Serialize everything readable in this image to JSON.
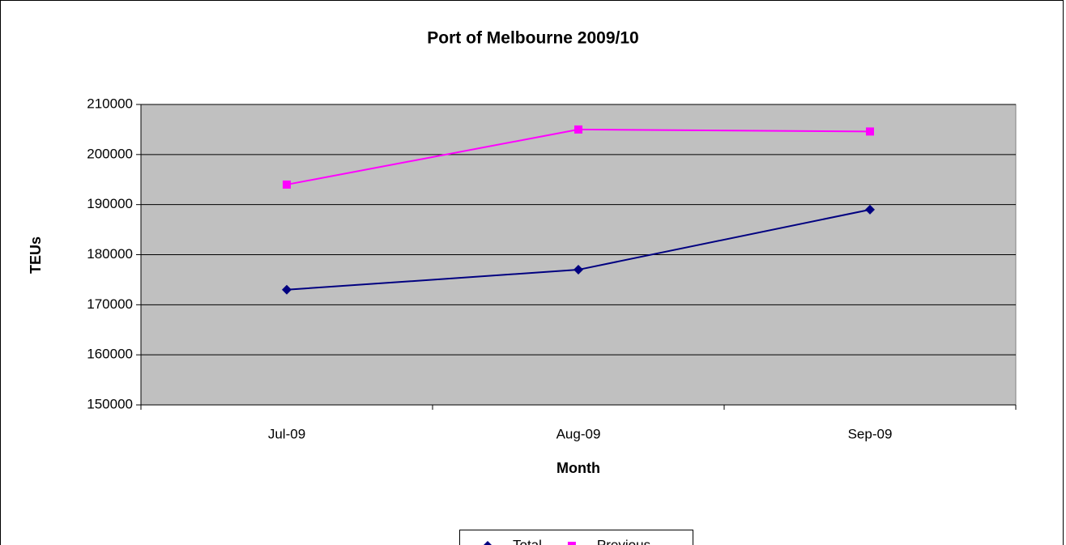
{
  "chart_data": {
    "type": "line",
    "title": "Port of Melbourne 2009/10",
    "x_label": "Month",
    "y_label": "TEUs",
    "categories": [
      "Jul-09",
      "Aug-09",
      "Sep-09"
    ],
    "series": [
      {
        "name": "Total",
        "color": "#000080",
        "marker": "diamond",
        "values": [
          173000,
          177000,
          189000
        ]
      },
      {
        "name": "Previous",
        "color": "#ff00ff",
        "marker": "square",
        "values": [
          194000,
          205000,
          204600
        ]
      }
    ],
    "ylim": [
      150000,
      210000
    ],
    "yticks": [
      150000,
      160000,
      170000,
      180000,
      190000,
      200000,
      210000
    ],
    "grid": true,
    "legend": "bottom",
    "plot_background": "#c0c0c0"
  }
}
